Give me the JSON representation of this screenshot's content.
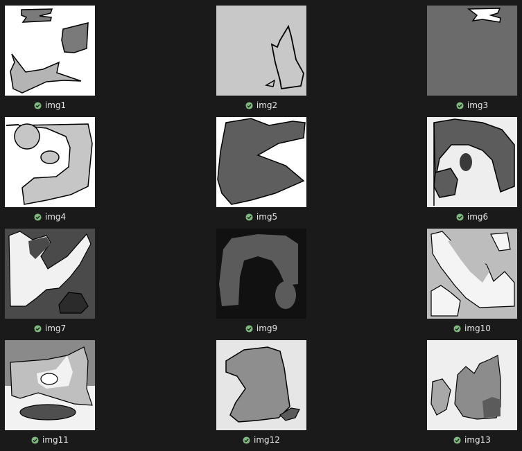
{
  "thumbnails": [
    {
      "name": "img1",
      "status_icon": "sync-ok-check-icon"
    },
    {
      "name": "img2",
      "status_icon": "sync-ok-check-icon"
    },
    {
      "name": "img3",
      "status_icon": "sync-ok-check-icon"
    },
    {
      "name": "img4",
      "status_icon": "sync-ok-check-icon"
    },
    {
      "name": "img5",
      "status_icon": "sync-ok-check-icon"
    },
    {
      "name": "img6",
      "status_icon": "sync-ok-check-icon"
    },
    {
      "name": "img7",
      "status_icon": "sync-ok-check-icon"
    },
    {
      "name": "img9",
      "status_icon": "sync-ok-check-icon"
    },
    {
      "name": "img10",
      "status_icon": "sync-ok-check-icon"
    },
    {
      "name": "img11",
      "status_icon": "sync-ok-check-icon"
    },
    {
      "name": "img12",
      "status_icon": "sync-ok-check-icon"
    },
    {
      "name": "img13",
      "status_icon": "sync-ok-check-icon"
    }
  ],
  "colors": {
    "background": "#1a1a1a",
    "label_text": "#e6e6e6",
    "status_ok": "#7fb97f"
  }
}
